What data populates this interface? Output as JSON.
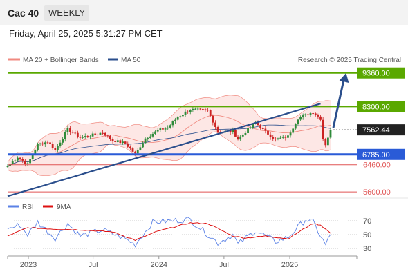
{
  "header": {
    "instrument": "Cac 40",
    "timeframe": "WEEKLY",
    "timestamp": "Friday, April 25, 2025 5:31:27 PM CET"
  },
  "legend": {
    "bollinger": "MA 20 + Bollinger Bands",
    "ma50": "MA 50",
    "credit": "Research © 2025 Trading Central",
    "rsi": "RSI",
    "rsi_ma": "9MA"
  },
  "colors": {
    "up": "#2e8b3a",
    "down": "#cc2222",
    "resistance": "#5aa800",
    "support": "#2a5bd7",
    "bollinger_fill": "#fde3e0",
    "bollinger_line": "#f08a80",
    "ma50": "#2a4e8c",
    "red_level": "#e05555",
    "rsi": "#5b82e6",
    "rsi_ma": "#dd1111"
  },
  "chart_data": [
    {
      "type": "candlestick",
      "ylim": [
        5450,
        9550
      ],
      "x_range": [
        "2022-11-04",
        "2025-04-25"
      ],
      "x_tick_labels": [
        "2023",
        "Jul",
        "2024",
        "Jul",
        "2025"
      ],
      "x_ticks": [
        "2023-01-01",
        "2023-07-01",
        "2024-01-01",
        "2024-07-01",
        "2025-01-01"
      ],
      "closes_key": [
        [
          "2022-11-04",
          6416
        ],
        [
          "2022-12-02",
          6700
        ],
        [
          "2022-12-30",
          6474
        ],
        [
          "2023-01-27",
          7097
        ],
        [
          "2023-02-24",
          7187
        ],
        [
          "2023-03-17",
          6925
        ],
        [
          "2023-04-21",
          7577
        ],
        [
          "2023-05-26",
          7319
        ],
        [
          "2023-06-30",
          7400
        ],
        [
          "2023-07-28",
          7476
        ],
        [
          "2023-08-25",
          7230
        ],
        [
          "2023-09-29",
          7135
        ],
        [
          "2023-10-27",
          6795
        ],
        [
          "2023-11-24",
          7293
        ],
        [
          "2023-12-29",
          7543
        ],
        [
          "2024-01-26",
          7634
        ],
        [
          "2024-02-23",
          7966
        ],
        [
          "2024-03-28",
          8205
        ],
        [
          "2024-05-17",
          8167
        ],
        [
          "2024-06-14",
          7503
        ],
        [
          "2024-07-26",
          7517
        ],
        [
          "2024-08-09",
          7270
        ],
        [
          "2024-09-27",
          7791
        ],
        [
          "2024-10-25",
          7497
        ],
        [
          "2024-11-22",
          7255
        ],
        [
          "2024-12-27",
          7355
        ],
        [
          "2025-01-24",
          7927
        ],
        [
          "2025-03-07",
          8120
        ],
        [
          "2025-03-28",
          7916
        ],
        [
          "2025-04-04",
          7274
        ],
        [
          "2025-04-11",
          7104
        ],
        [
          "2025-04-25",
          7562
        ]
      ],
      "levels": [
        {
          "value": 9360.0,
          "label": "9360.00",
          "kind": "resistance"
        },
        {
          "value": 8300.0,
          "label": "8300.00",
          "kind": "resistance"
        },
        {
          "value": 7562.44,
          "label": "7562.44",
          "kind": "last"
        },
        {
          "value": 6785.0,
          "label": "6785.00",
          "kind": "support"
        },
        {
          "value": 6460.0,
          "label": "6460.00",
          "kind": "red"
        },
        {
          "value": 5600.0,
          "label": "5600.00",
          "kind": "red"
        }
      ],
      "trendline": {
        "from": [
          "2022-11-04",
          5465
        ],
        "to": [
          "2025-03-28",
          8390
        ]
      },
      "projection": {
        "from": [
          "2025-04-25",
          7630
        ],
        "to": [
          "2025-05-23",
          9360
        ]
      }
    },
    {
      "type": "line",
      "title": "RSI",
      "ylim": [
        22,
        78
      ],
      "y_ticks": [
        70,
        50,
        30
      ],
      "series": [
        {
          "name": "RSI",
          "key": [
            [
              "2022-11-04",
              58
            ],
            [
              "2022-12-09",
              64
            ],
            [
              "2022-12-30",
              50
            ],
            [
              "2023-01-27",
              68
            ],
            [
              "2023-03-17",
              45
            ],
            [
              "2023-04-21",
              66
            ],
            [
              "2023-05-26",
              48
            ],
            [
              "2023-07-28",
              57
            ],
            [
              "2023-09-29",
              44
            ],
            [
              "2023-10-27",
              36
            ],
            [
              "2023-12-15",
              68
            ],
            [
              "2024-03-28",
              72
            ],
            [
              "2024-06-14",
              38
            ],
            [
              "2024-07-26",
              50
            ],
            [
              "2024-08-09",
              36
            ],
            [
              "2024-09-27",
              56
            ],
            [
              "2024-11-22",
              40
            ],
            [
              "2024-12-27",
              46
            ],
            [
              "2025-02-14",
              72
            ],
            [
              "2025-03-07",
              68
            ],
            [
              "2025-04-11",
              35
            ],
            [
              "2025-04-25",
              50
            ]
          ]
        },
        {
          "name": "9MA",
          "key": [
            [
              "2022-11-04",
              48
            ],
            [
              "2022-12-30",
              60
            ],
            [
              "2023-03-17",
              58
            ],
            [
              "2023-05-26",
              57
            ],
            [
              "2023-08-25",
              54
            ],
            [
              "2023-10-27",
              42
            ],
            [
              "2023-12-29",
              55
            ],
            [
              "2024-03-28",
              67
            ],
            [
              "2024-05-17",
              66
            ],
            [
              "2024-07-26",
              48
            ],
            [
              "2024-08-30",
              45
            ],
            [
              "2024-10-25",
              48
            ],
            [
              "2024-12-27",
              44
            ],
            [
              "2025-02-14",
              60
            ],
            [
              "2025-03-07",
              66
            ],
            [
              "2025-03-28",
              64
            ],
            [
              "2025-04-25",
              52
            ]
          ]
        }
      ]
    }
  ]
}
